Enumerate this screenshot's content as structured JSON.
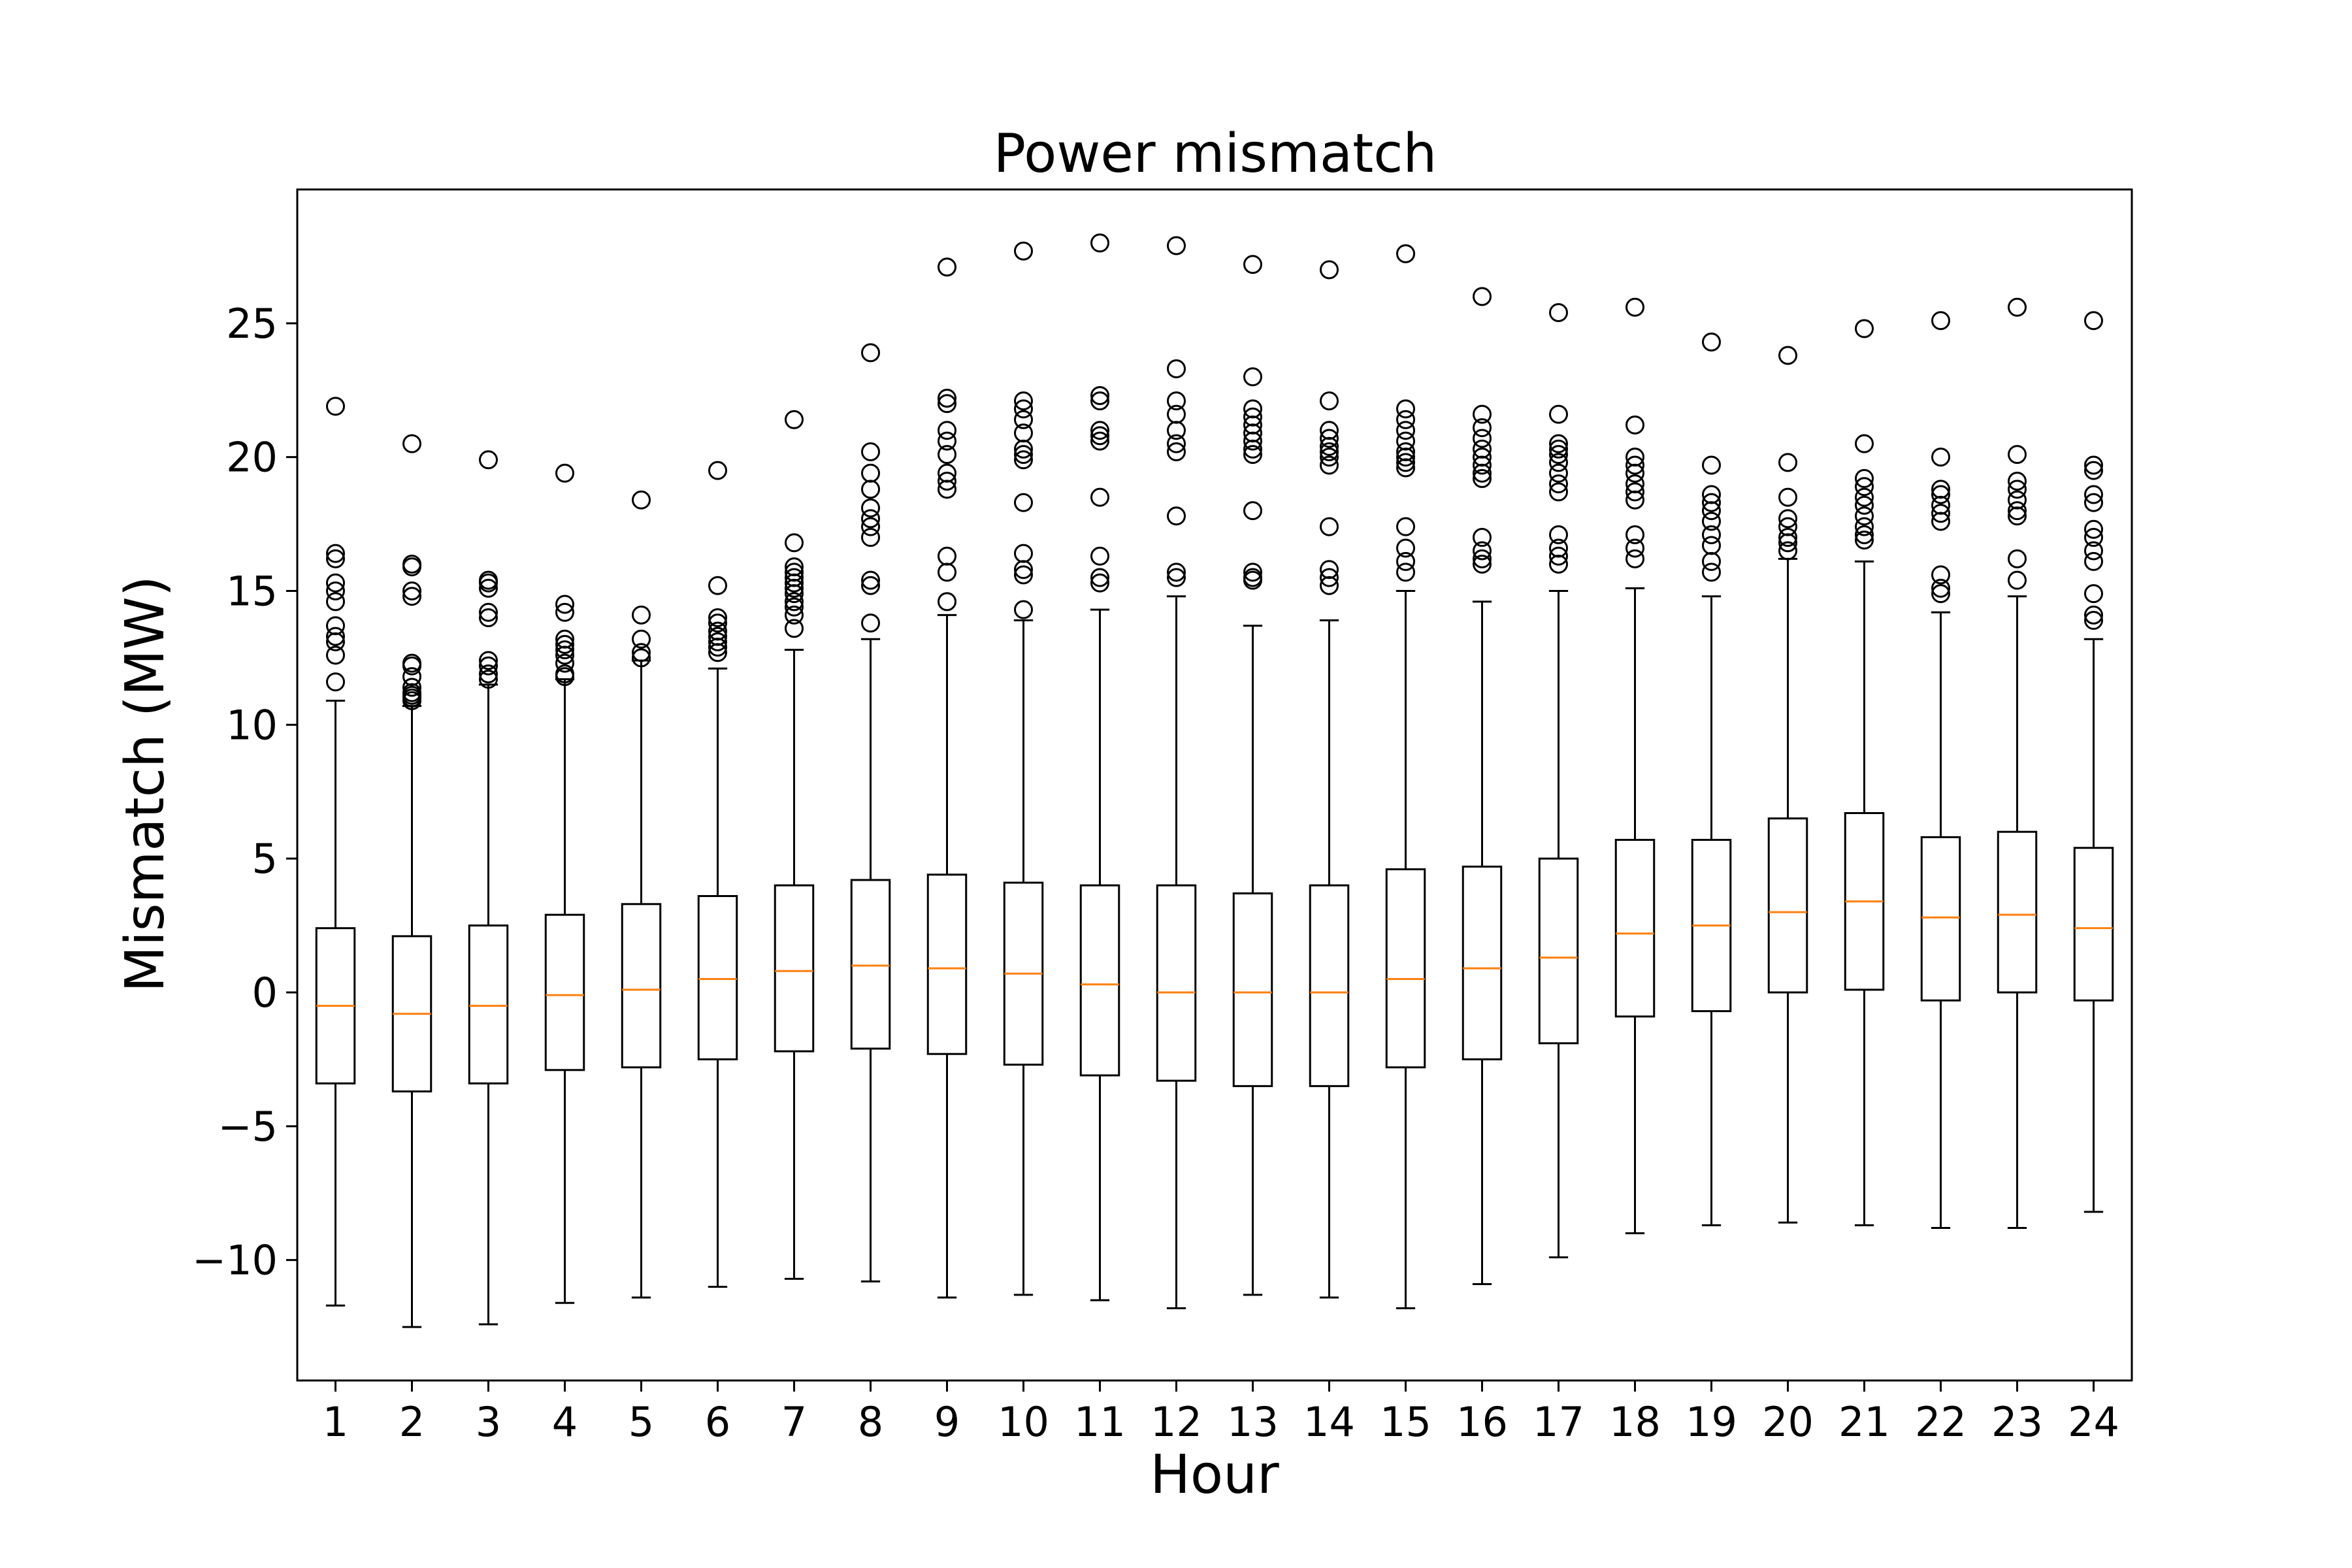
{
  "chart_data": {
    "type": "box",
    "title": "Power mismatch",
    "xlabel": "Hour",
    "ylabel": "Mismatch (MW)",
    "ylim": [
      -14.5,
      30.0
    ],
    "yticks": [
      -10,
      -5,
      0,
      5,
      10,
      15,
      20,
      25
    ],
    "ytick_labels": [
      "−10",
      "−5",
      "0",
      "5",
      "10",
      "15",
      "20",
      "25"
    ],
    "categories": [
      "1",
      "2",
      "3",
      "4",
      "5",
      "6",
      "7",
      "8",
      "9",
      "10",
      "11",
      "12",
      "13",
      "14",
      "15",
      "16",
      "17",
      "18",
      "19",
      "20",
      "21",
      "22",
      "23",
      "24"
    ],
    "grid": false,
    "colors": {
      "box": "#000000",
      "median": "#ff7f0e",
      "flier": "#000000"
    },
    "boxes": [
      {
        "whislo": -11.7,
        "q1": -3.4,
        "med": -0.5,
        "q3": 2.4,
        "whishi": 10.9,
        "fliers": [
          21.9,
          16.4,
          16.2,
          15.3,
          15.0,
          14.6,
          13.7,
          13.3,
          13.1,
          12.6,
          11.6
        ]
      },
      {
        "whislo": -12.5,
        "q1": -3.7,
        "med": -0.8,
        "q3": 2.1,
        "whishi": 10.7,
        "fliers": [
          20.5,
          16.0,
          15.9,
          15.0,
          14.8,
          12.3,
          12.2,
          11.8,
          11.4,
          11.2,
          11.1,
          11.0,
          10.9
        ]
      },
      {
        "whislo": -12.4,
        "q1": -3.4,
        "med": -0.5,
        "q3": 2.5,
        "whishi": 11.5,
        "fliers": [
          19.9,
          15.4,
          15.3,
          15.1,
          14.2,
          14.0,
          12.4,
          12.2,
          11.9,
          11.7
        ]
      },
      {
        "whislo": -11.6,
        "q1": -2.9,
        "med": -0.1,
        "q3": 2.9,
        "whishi": 11.7,
        "fliers": [
          19.4,
          14.5,
          14.2,
          13.2,
          13.0,
          12.8,
          12.6,
          12.3,
          11.9,
          11.8
        ]
      },
      {
        "whislo": -11.4,
        "q1": -2.8,
        "med": 0.1,
        "q3": 3.3,
        "whishi": 12.4,
        "fliers": [
          18.4,
          14.1,
          13.2,
          12.7,
          12.5
        ]
      },
      {
        "whislo": -11.0,
        "q1": -2.5,
        "med": 0.5,
        "q3": 3.6,
        "whishi": 12.1,
        "fliers": [
          19.5,
          15.2,
          14.0,
          13.8,
          13.5,
          13.3,
          13.1,
          12.9,
          12.7
        ]
      },
      {
        "whislo": -10.7,
        "q1": -2.2,
        "med": 0.8,
        "q3": 4.0,
        "whishi": 12.8,
        "fliers": [
          21.4,
          16.8,
          15.9,
          15.7,
          15.5,
          15.3,
          15.1,
          14.9,
          14.6,
          14.4,
          14.1,
          13.6
        ]
      },
      {
        "whislo": -10.8,
        "q1": -2.1,
        "med": 1.0,
        "q3": 4.2,
        "whishi": 13.2,
        "fliers": [
          23.9,
          20.2,
          19.4,
          18.8,
          18.1,
          17.7,
          17.4,
          17.0,
          15.4,
          15.2,
          13.8
        ]
      },
      {
        "whislo": -11.4,
        "q1": -2.3,
        "med": 0.9,
        "q3": 4.4,
        "whishi": 14.1,
        "fliers": [
          27.1,
          22.2,
          22.0,
          21.0,
          20.6,
          20.1,
          19.4,
          19.1,
          18.8,
          16.3,
          15.7,
          14.6
        ]
      },
      {
        "whislo": -11.3,
        "q1": -2.7,
        "med": 0.7,
        "q3": 4.1,
        "whishi": 13.9,
        "fliers": [
          27.7,
          22.1,
          21.8,
          21.4,
          20.9,
          20.3,
          20.1,
          19.9,
          18.3,
          16.4,
          15.8,
          15.6,
          14.3
        ]
      },
      {
        "whislo": -11.5,
        "q1": -3.1,
        "med": 0.3,
        "q3": 4.0,
        "whishi": 14.3,
        "fliers": [
          28.0,
          22.3,
          22.1,
          21.0,
          20.8,
          20.6,
          18.5,
          16.3,
          15.5,
          15.3
        ]
      },
      {
        "whislo": -11.8,
        "q1": -3.3,
        "med": 0.0,
        "q3": 4.0,
        "whishi": 14.8,
        "fliers": [
          27.9,
          23.3,
          22.1,
          21.6,
          21.0,
          20.5,
          20.2,
          17.8,
          15.7,
          15.5
        ]
      },
      {
        "whislo": -11.3,
        "q1": -3.5,
        "med": 0.0,
        "q3": 3.7,
        "whishi": 13.7,
        "fliers": [
          27.2,
          23.0,
          21.8,
          21.5,
          21.2,
          20.9,
          20.6,
          20.3,
          20.1,
          18.0,
          15.7,
          15.5,
          15.4
        ]
      },
      {
        "whislo": -11.4,
        "q1": -3.5,
        "med": 0.0,
        "q3": 4.0,
        "whishi": 13.9,
        "fliers": [
          27.0,
          22.1,
          21.0,
          20.7,
          20.4,
          20.2,
          20.0,
          19.7,
          17.4,
          15.8,
          15.5,
          15.2
        ]
      },
      {
        "whislo": -11.8,
        "q1": -2.8,
        "med": 0.5,
        "q3": 4.6,
        "whishi": 15.0,
        "fliers": [
          27.6,
          21.8,
          21.4,
          21.0,
          20.6,
          20.2,
          20.0,
          19.8,
          19.6,
          17.4,
          16.6,
          16.1,
          15.7
        ]
      },
      {
        "whislo": -10.9,
        "q1": -2.5,
        "med": 0.9,
        "q3": 4.7,
        "whishi": 14.6,
        "fliers": [
          26.0,
          21.6,
          21.1,
          20.7,
          20.3,
          20.0,
          19.7,
          19.4,
          19.2,
          17.0,
          16.5,
          16.2,
          16.0
        ]
      },
      {
        "whislo": -9.9,
        "q1": -1.9,
        "med": 1.3,
        "q3": 5.0,
        "whishi": 15.0,
        "fliers": [
          25.4,
          21.6,
          20.5,
          20.3,
          20.1,
          19.8,
          19.4,
          19.0,
          18.7,
          17.1,
          16.6,
          16.3,
          16.0
        ]
      },
      {
        "whislo": -9.0,
        "q1": -0.9,
        "med": 2.2,
        "q3": 5.7,
        "whishi": 15.1,
        "fliers": [
          25.6,
          21.2,
          20.0,
          19.7,
          19.4,
          19.0,
          18.7,
          18.4,
          17.1,
          16.6,
          16.2
        ]
      },
      {
        "whislo": -8.7,
        "q1": -0.7,
        "med": 2.5,
        "q3": 5.7,
        "whishi": 14.8,
        "fliers": [
          24.3,
          19.7,
          18.6,
          18.3,
          18.0,
          17.6,
          17.1,
          16.7,
          16.1,
          15.7
        ]
      },
      {
        "whislo": -8.6,
        "q1": 0.0,
        "med": 3.0,
        "q3": 6.5,
        "whishi": 16.2,
        "fliers": [
          23.8,
          19.8,
          18.5,
          17.7,
          17.4,
          17.0,
          16.8,
          16.5
        ]
      },
      {
        "whislo": -8.7,
        "q1": 0.1,
        "med": 3.4,
        "q3": 6.7,
        "whishi": 16.1,
        "fliers": [
          24.8,
          20.5,
          19.2,
          18.9,
          18.5,
          18.2,
          17.8,
          17.4,
          17.1,
          16.9
        ]
      },
      {
        "whislo": -8.8,
        "q1": -0.3,
        "med": 2.8,
        "q3": 5.8,
        "whishi": 14.2,
        "fliers": [
          25.1,
          20.0,
          18.8,
          18.6,
          18.2,
          17.9,
          17.6,
          15.6,
          15.1,
          14.9
        ]
      },
      {
        "whislo": -8.8,
        "q1": 0.0,
        "med": 2.9,
        "q3": 6.0,
        "whishi": 14.8,
        "fliers": [
          25.6,
          20.1,
          19.1,
          18.8,
          18.4,
          18.0,
          17.8,
          16.2,
          15.4
        ]
      },
      {
        "whislo": -8.2,
        "q1": -0.3,
        "med": 2.4,
        "q3": 5.4,
        "whishi": 13.2,
        "fliers": [
          25.1,
          19.7,
          19.5,
          18.6,
          18.3,
          17.3,
          17.0,
          16.5,
          16.1,
          14.9,
          14.1,
          13.9
        ]
      }
    ]
  }
}
